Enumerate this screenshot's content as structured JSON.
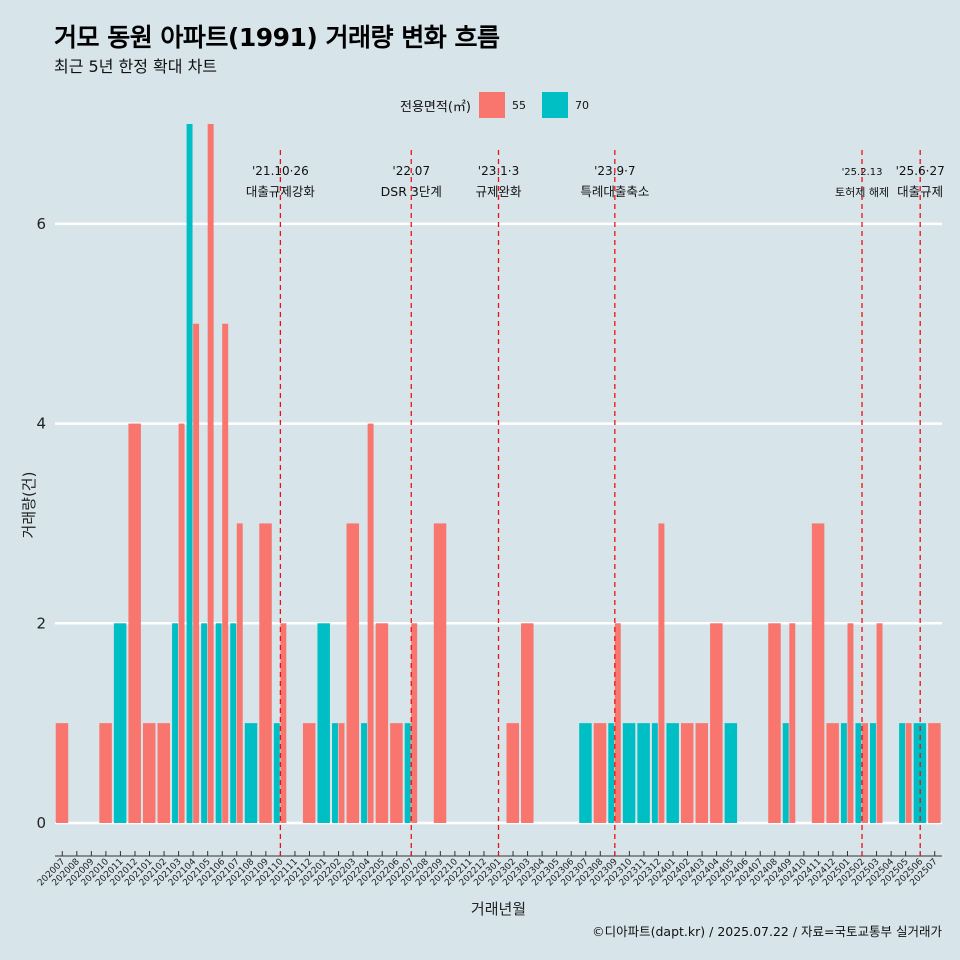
{
  "title": "거모 동원 아파트(1991) 거래량 변화 흐름",
  "subtitle": "최근 5년 한정 확대 차트",
  "legend": {
    "title": "전용면적(㎡)",
    "items": [
      {
        "label": "55",
        "color": "#f8766d"
      },
      {
        "label": "70",
        "color": "#00bfc4"
      }
    ]
  },
  "caption": "©디아파트(dapt.kr) / 2025.07.22 / 자료=국토교통부 실거래가",
  "chart_data": {
    "type": "bar",
    "xlabel": "거래년월",
    "ylabel": "거래량(건)",
    "ylim": [
      0,
      7
    ],
    "yticks": [
      0,
      2,
      4,
      6
    ],
    "categories": [
      "202007",
      "202008",
      "202009",
      "202010",
      "202011",
      "202012",
      "202101",
      "202102",
      "202103",
      "202104",
      "202105",
      "202106",
      "202107",
      "202108",
      "202109",
      "202110",
      "202111",
      "202112",
      "202201",
      "202202",
      "202203",
      "202204",
      "202205",
      "202206",
      "202207",
      "202208",
      "202209",
      "202210",
      "202211",
      "202212",
      "202301",
      "202302",
      "202303",
      "202304",
      "202305",
      "202306",
      "202307",
      "202308",
      "202309",
      "202310",
      "202311",
      "202312",
      "202401",
      "202402",
      "202403",
      "202404",
      "202405",
      "202406",
      "202407",
      "202408",
      "202409",
      "202410",
      "202411",
      "202412",
      "202501",
      "202502",
      "202503",
      "202504",
      "202505",
      "202506",
      "202507"
    ],
    "series": [
      {
        "name": "55",
        "color": "#f8766d",
        "values": [
          1,
          0,
          0,
          1,
          0,
          4,
          1,
          1,
          4,
          5,
          7,
          5,
          3,
          0,
          3,
          2,
          0,
          1,
          0,
          1,
          3,
          4,
          2,
          1,
          2,
          0,
          3,
          0,
          0,
          0,
          0,
          1,
          2,
          0,
          0,
          0,
          0,
          1,
          2,
          0,
          0,
          3,
          0,
          1,
          1,
          2,
          0,
          0,
          0,
          2,
          2,
          0,
          3,
          1,
          2,
          1,
          2,
          0,
          1,
          0,
          1
        ]
      },
      {
        "name": "70",
        "color": "#00bfc4",
        "values": [
          0,
          0,
          0,
          0,
          2,
          0,
          0,
          0,
          2,
          7,
          2,
          2,
          2,
          1,
          0,
          1,
          0,
          0,
          2,
          1,
          0,
          1,
          0,
          0,
          1,
          0,
          0,
          0,
          0,
          0,
          0,
          0,
          0,
          0,
          0,
          0,
          1,
          0,
          1,
          1,
          1,
          1,
          1,
          0,
          0,
          0,
          1,
          0,
          0,
          0,
          1,
          0,
          0,
          0,
          1,
          1,
          1,
          0,
          1,
          1,
          0
        ]
      }
    ],
    "annotations": [
      {
        "x": "202110",
        "date": "'21.10·26",
        "label": "대출규제강화"
      },
      {
        "x": "202207",
        "date": "'22.07",
        "label": "DSR 3단계"
      },
      {
        "x": "202301",
        "date": "'23.1·3",
        "label": "규제완화"
      },
      {
        "x": "202309",
        "date": "'23.9·7",
        "label": "특례대출축소"
      },
      {
        "x": "202502",
        "date": "'25.2.13",
        "label": "토허제 해제"
      },
      {
        "x": "202506",
        "date": "'25.6·27",
        "label": "대출규제"
      }
    ],
    "grid": true,
    "legend_position": "top"
  }
}
